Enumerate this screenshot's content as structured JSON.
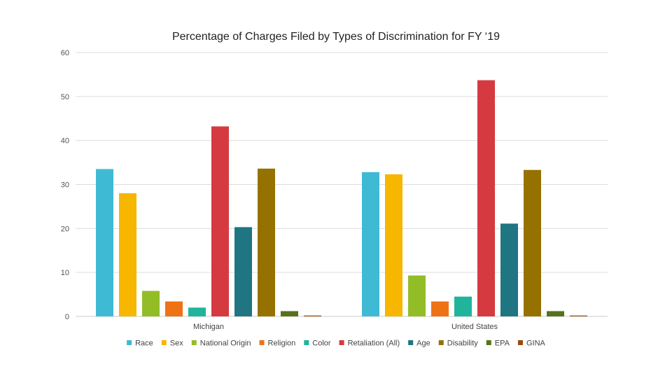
{
  "chart_data": {
    "type": "bar",
    "title": "Percentage of Charges Filed by Types of Discrimination for FY ‘19",
    "xlabel": "",
    "ylabel": "",
    "ylim": [
      0,
      60
    ],
    "yticks": [
      0,
      10,
      20,
      30,
      40,
      50,
      60
    ],
    "grid": true,
    "legend_position": "bottom",
    "categories": [
      "Michigan",
      "United States"
    ],
    "series": [
      {
        "name": "Race",
        "color": "#3fbad5",
        "values": [
          33.5,
          32.8
        ]
      },
      {
        "name": "Sex",
        "color": "#f7b600",
        "values": [
          28.0,
          32.3
        ]
      },
      {
        "name": "National Origin",
        "color": "#93bd26",
        "values": [
          5.8,
          9.3
        ]
      },
      {
        "name": "Religion",
        "color": "#ef7215",
        "values": [
          3.4,
          3.4
        ]
      },
      {
        "name": "Color",
        "color": "#1fb49b",
        "values": [
          2.0,
          4.5
        ]
      },
      {
        "name": "Retaliation (All)",
        "color": "#d53a40",
        "values": [
          43.2,
          53.7
        ]
      },
      {
        "name": "Age",
        "color": "#1f7581",
        "values": [
          20.3,
          21.1
        ]
      },
      {
        "name": "Disability",
        "color": "#957200",
        "values": [
          33.6,
          33.3
        ]
      },
      {
        "name": "EPA",
        "color": "#57721a",
        "values": [
          1.2,
          1.2
        ]
      },
      {
        "name": "GINA",
        "color": "#9c4a0c",
        "values": [
          0.2,
          0.2
        ]
      }
    ]
  }
}
